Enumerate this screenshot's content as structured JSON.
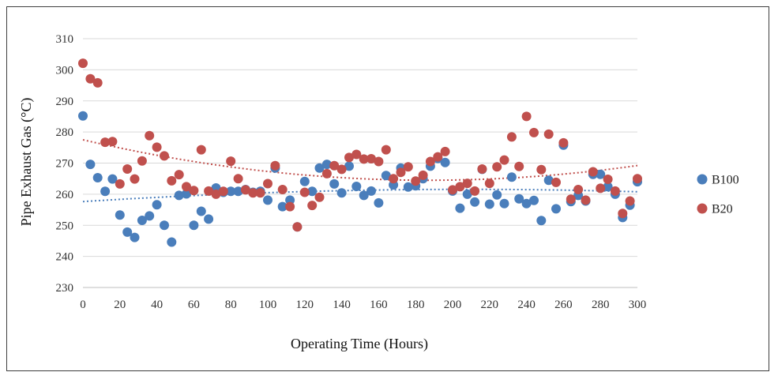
{
  "chart_data": {
    "type": "scatter",
    "title": "",
    "xlabel": "Operating Time (Hours)",
    "ylabel": "Pipe Exhaust Gas (°C)",
    "xlim": [
      0,
      300
    ],
    "ylim": [
      230,
      310
    ],
    "x_ticks": [
      0,
      20,
      40,
      60,
      80,
      100,
      120,
      140,
      160,
      180,
      200,
      220,
      240,
      260,
      280,
      300
    ],
    "y_ticks": [
      230,
      240,
      250,
      260,
      270,
      280,
      290,
      300,
      310
    ],
    "grid": "horizontal",
    "legend_position": "right",
    "trendlines": "polynomial (dotted)",
    "series": [
      {
        "name": "B100",
        "color": "#4A7EBB",
        "x": [
          0,
          4,
          8,
          12,
          16,
          20,
          24,
          28,
          32,
          36,
          40,
          44,
          48,
          52,
          56,
          60,
          64,
          68,
          72,
          76,
          80,
          84,
          88,
          92,
          96,
          100,
          104,
          108,
          112,
          116,
          120,
          124,
          128,
          132,
          136,
          140,
          144,
          148,
          152,
          156,
          160,
          164,
          168,
          172,
          176,
          180,
          184,
          188,
          192,
          196,
          200,
          204,
          208,
          212,
          216,
          220,
          224,
          228,
          232,
          236,
          240,
          244,
          248,
          252,
          256,
          260,
          264,
          268,
          272,
          276,
          280,
          284,
          288,
          292,
          296,
          300
        ],
        "y": [
          285.2,
          269.6,
          265.3,
          260.9,
          264.9,
          253.3,
          247.8,
          246.1,
          251.6,
          253.0,
          256.6,
          250.0,
          244.6,
          259.6,
          260.1,
          250.0,
          254.5,
          252.0,
          262.0,
          260.6,
          260.9,
          260.9,
          261.5,
          260.6,
          260.9,
          258.1,
          268.4,
          256.0,
          258.1,
          249.5,
          264.1,
          260.9,
          268.4,
          269.6,
          263.3,
          260.4,
          269.0,
          262.5,
          259.6,
          261.0,
          257.2,
          266.0,
          263.0,
          268.4,
          262.3,
          262.7,
          265.0,
          269.0,
          271.5,
          270.2,
          261.0,
          255.5,
          260.0,
          257.5,
          268.0,
          256.8,
          259.8,
          257.0,
          265.5,
          258.5,
          257.0,
          258.0,
          251.5,
          264.5,
          255.3,
          275.8,
          257.6,
          259.6,
          257.8,
          266.4,
          266.4,
          262.4,
          260.0,
          252.5,
          256.5,
          264.0
        ]
      },
      {
        "name": "B20",
        "color": "#C0504D",
        "x": [
          0,
          4,
          8,
          12,
          16,
          20,
          24,
          28,
          32,
          36,
          40,
          44,
          48,
          52,
          56,
          60,
          64,
          68,
          72,
          76,
          80,
          84,
          88,
          92,
          96,
          100,
          104,
          108,
          112,
          116,
          120,
          124,
          128,
          132,
          136,
          140,
          144,
          148,
          152,
          156,
          160,
          164,
          168,
          172,
          176,
          180,
          184,
          188,
          192,
          196,
          200,
          204,
          208,
          212,
          216,
          220,
          224,
          228,
          232,
          236,
          240,
          244,
          248,
          252,
          256,
          260,
          264,
          268,
          272,
          276,
          280,
          284,
          288,
          292,
          296,
          300
        ],
        "y": [
          302.1,
          297.1,
          295.8,
          276.7,
          276.9,
          263.3,
          268.1,
          264.9,
          270.7,
          278.8,
          275.1,
          272.3,
          264.3,
          266.3,
          262.4,
          261.2,
          274.3,
          261.0,
          260.0,
          260.9,
          270.6,
          265.0,
          261.4,
          260.4,
          260.4,
          263.4,
          269.2,
          261.5,
          256.0,
          249.5,
          260.6,
          256.4,
          259.0,
          266.6,
          269.2,
          268.0,
          271.8,
          272.8,
          271.3,
          271.4,
          270.5,
          274.3,
          265.0,
          267.0,
          268.8,
          264.2,
          266.1,
          270.5,
          272.0,
          273.7,
          261.4,
          262.4,
          263.5,
          261.0,
          268.1,
          263.5,
          268.8,
          271.0,
          278.4,
          268.9,
          285.0,
          279.8,
          267.9,
          279.3,
          263.8,
          276.5,
          258.4,
          261.5,
          258.1,
          267.2,
          261.9,
          264.8,
          261.0,
          253.8,
          257.8,
          265.0
        ]
      }
    ]
  }
}
